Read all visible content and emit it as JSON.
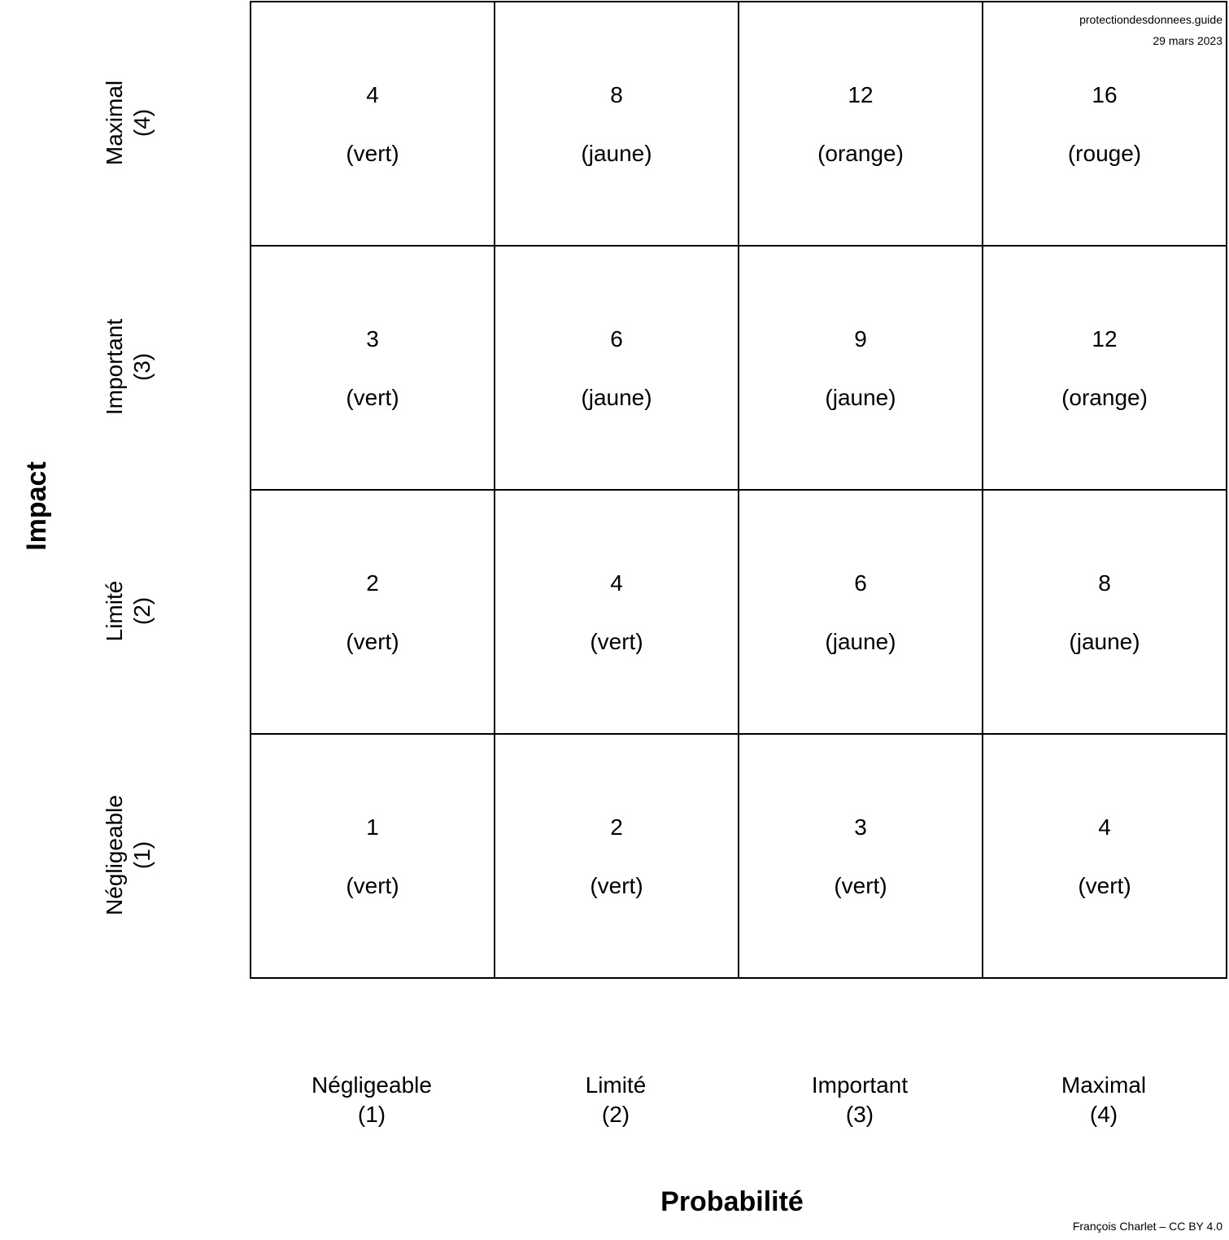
{
  "matrix": {
    "rows": [
      {
        "label": "Maximal",
        "level": "(4)",
        "cells": [
          {
            "score": "4",
            "color": "(vert)"
          },
          {
            "score": "8",
            "color": "(jaune)"
          },
          {
            "score": "12",
            "color": "(orange)"
          },
          {
            "score": "16",
            "color": "(rouge)"
          }
        ]
      },
      {
        "label": "Important",
        "level": "(3)",
        "cells": [
          {
            "score": "3",
            "color": "(vert)"
          },
          {
            "score": "6",
            "color": "(jaune)"
          },
          {
            "score": "9",
            "color": "(jaune)"
          },
          {
            "score": "12",
            "color": "(orange)"
          }
        ]
      },
      {
        "label": "Limité",
        "level": "(2)",
        "cells": [
          {
            "score": "2",
            "color": "(vert)"
          },
          {
            "score": "4",
            "color": "(vert)"
          },
          {
            "score": "6",
            "color": "(jaune)"
          },
          {
            "score": "8",
            "color": "(jaune)"
          }
        ]
      },
      {
        "label": "Négligeable",
        "level": "(1)",
        "cells": [
          {
            "score": "1",
            "color": "(vert)"
          },
          {
            "score": "2",
            "color": "(vert)"
          },
          {
            "score": "3",
            "color": "(vert)"
          },
          {
            "score": "4",
            "color": "(vert)"
          }
        ]
      }
    ],
    "columns": [
      {
        "label": "Négligeable",
        "level": "(1)"
      },
      {
        "label": "Limité",
        "level": "(2)"
      },
      {
        "label": "Important",
        "level": "(3)"
      },
      {
        "label": "Maximal",
        "level": "(4)"
      }
    ]
  },
  "axes": {
    "y_title": "Impact",
    "x_title": "Probabilité"
  },
  "source": {
    "site": "protectiondesdonnees.guide",
    "date": "29 mars 2023"
  },
  "credit": "François Charlet – CC BY 4.0"
}
